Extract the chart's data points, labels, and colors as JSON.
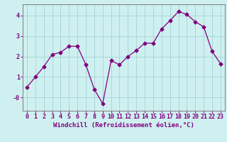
{
  "x": [
    0,
    1,
    2,
    3,
    4,
    5,
    6,
    7,
    8,
    9,
    10,
    11,
    12,
    13,
    14,
    15,
    16,
    17,
    18,
    19,
    20,
    21,
    22,
    23
  ],
  "y": [
    0.5,
    1.0,
    1.5,
    2.1,
    2.2,
    2.5,
    2.5,
    1.6,
    0.4,
    -0.3,
    1.8,
    1.6,
    2.0,
    2.3,
    2.65,
    2.65,
    3.35,
    3.75,
    4.2,
    4.05,
    3.7,
    3.45,
    2.25,
    1.65
  ],
  "line_color": "#800080",
  "marker": "D",
  "markersize": 2.5,
  "linewidth": 0.9,
  "xlabel": "Windchill (Refroidissement éolien,°C)",
  "xlim": [
    -0.5,
    23.5
  ],
  "ylim": [
    -0.65,
    4.55
  ],
  "yticks": [
    0,
    1,
    2,
    3,
    4
  ],
  "ytick_labels": [
    "-0",
    "1",
    "2",
    "3",
    "4"
  ],
  "xticks": [
    0,
    1,
    2,
    3,
    4,
    5,
    6,
    7,
    8,
    9,
    10,
    11,
    12,
    13,
    14,
    15,
    16,
    17,
    18,
    19,
    20,
    21,
    22,
    23
  ],
  "bg_color": "#cff0f0",
  "grid_color": "#a8d8d8",
  "font_color": "#800080",
  "xlabel_fontsize": 6.5,
  "tick_fontsize": 6.0
}
